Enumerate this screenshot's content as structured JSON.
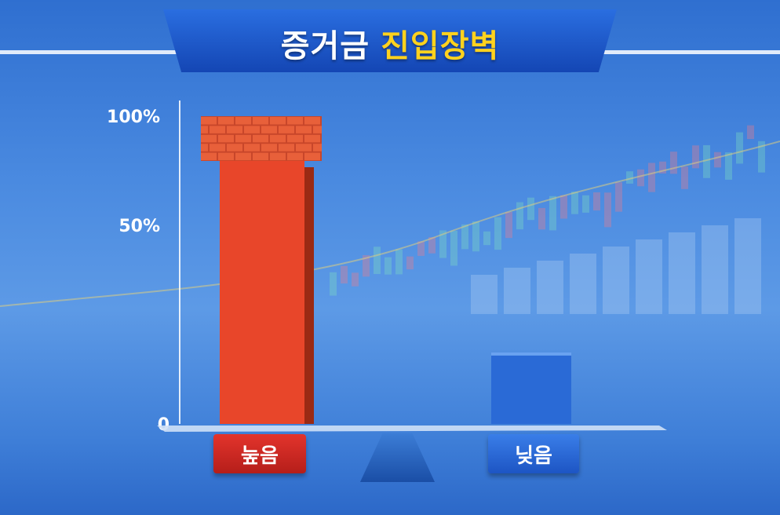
{
  "title": {
    "part1": "증거금",
    "part2": "진입장벽"
  },
  "colors": {
    "high": "#e8462a",
    "low": "#2a6ad6",
    "title_accent": "#ffd21e",
    "brick": "#e8603a"
  },
  "chart_data": {
    "type": "bar",
    "categories": [
      "눞음",
      "닞음"
    ],
    "values": [
      100,
      18
    ],
    "y_ticks": [
      "0",
      "50%",
      "100%"
    ],
    "ylim": [
      0,
      100
    ],
    "grid": false,
    "annotations": [
      "brick wall on top of high bar"
    ]
  }
}
